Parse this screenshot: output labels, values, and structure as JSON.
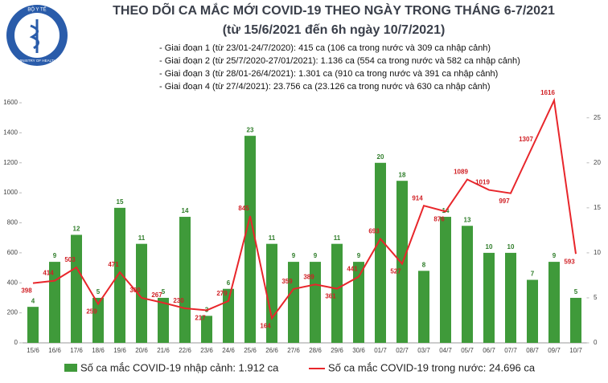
{
  "header": {
    "logo_top": "BỘ Y TẾ",
    "logo_bottom": "MINISTRY OF HEALTH"
  },
  "chart_data": {
    "type": "bar",
    "title": "THEO DÕI CA MẮC MỚI COVID-19 THEO NGÀY TRONG THÁNG 6-7/2021",
    "subtitle": "(từ 15/6/2021 đến 6h ngày 10/7/2021)",
    "notes": [
      "- Giai đoạn 1 (từ 23/01-24/7/2020): 415 ca (106 ca trong nước và 309 ca nhập cảnh)",
      "- Giai đoạn 2 (từ 25/7/2020-27/01/2021): 1.136 ca (554 ca trong nước và 582 ca nhập cảnh)",
      "- Giai đoạn 3 (từ 28/01-26/4/2021): 1.301 ca (910 ca trong nước và 391 ca nhập cảnh)",
      "- Giai đoạn 4 (từ 27/4/2021): 23.756 ca (23.126 ca trong nước và 630 ca nhập cảnh)"
    ],
    "categories": [
      "15/6",
      "16/6",
      "17/6",
      "18/6",
      "19/6",
      "20/6",
      "21/6",
      "22/6",
      "23/6",
      "24/6",
      "25/6",
      "26/6",
      "27/6",
      "28/6",
      "29/6",
      "30/6",
      "01/7",
      "02/7",
      "03/7",
      "04/7",
      "05/7",
      "06/7",
      "07/7",
      "08/7",
      "09/7",
      "10/7"
    ],
    "series": [
      {
        "name": "Số ca mắc COVID-19 nhập cảnh: 1.912 ca",
        "type": "bar",
        "axis": "y2",
        "color": "#3f9a3a",
        "values": [
          4,
          9,
          12,
          5,
          15,
          11,
          5,
          14,
          3,
          6,
          23,
          11,
          9,
          9,
          11,
          9,
          20,
          18,
          8,
          14,
          13,
          10,
          10,
          7,
          9,
          5
        ]
      },
      {
        "name": "Số ca mắc COVID-19 trong nước: 24.696 ca",
        "type": "line",
        "color": "#e8262b",
        "values": [
          398,
          414,
          503,
          259,
          471,
          300,
          267,
          230,
          217,
          279,
          845,
          164,
          359,
          389,
          361,
          441,
          693,
          527,
          914,
          876,
          1089,
          1019,
          997,
          1307,
          1616,
          593
        ]
      }
    ],
    "ylim": [
      0,
      1600
    ],
    "yticks": [
      0,
      200,
      400,
      600,
      800,
      1000,
      1200,
      1400,
      1600
    ],
    "y2lim": [
      0,
      26.67
    ],
    "y2ticks": [
      0,
      5,
      10,
      15,
      20,
      25
    ]
  }
}
